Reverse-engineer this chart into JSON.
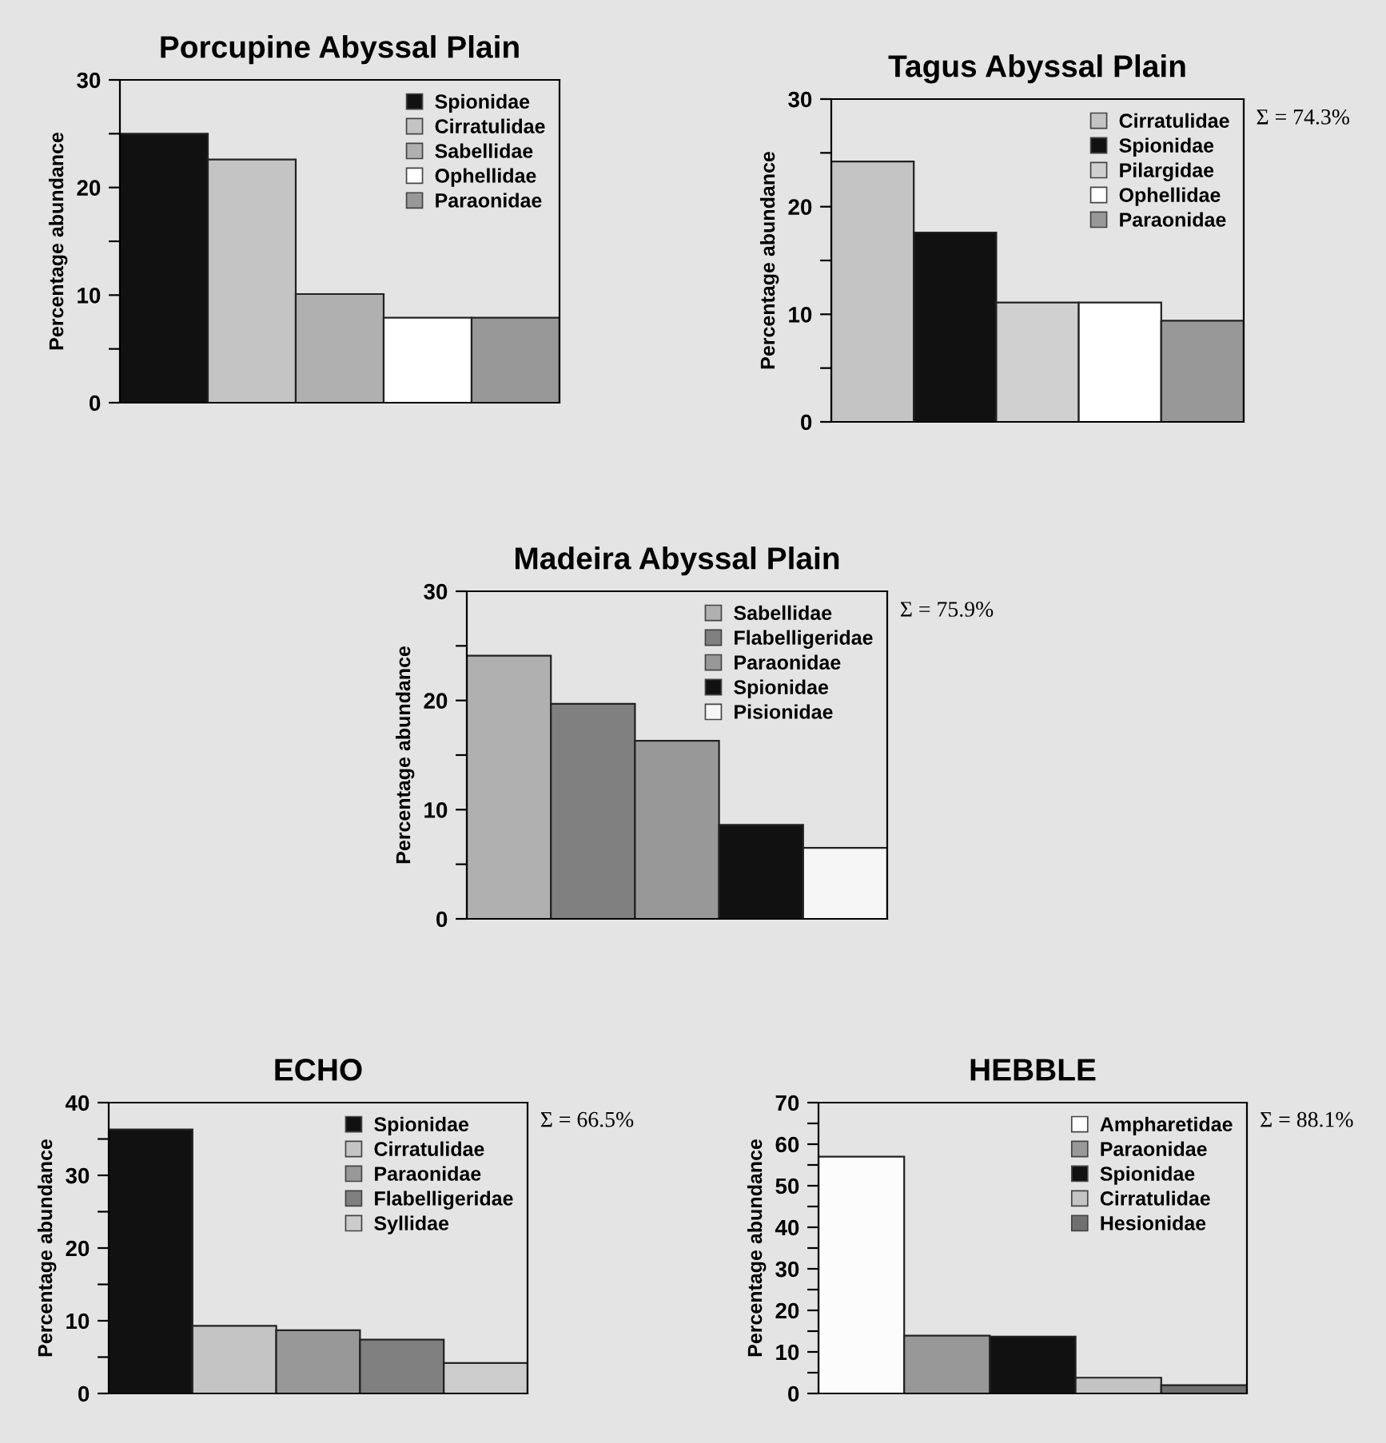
{
  "chart_data": [
    {
      "type": "bar",
      "title": "Porcupine Abyssal Plain",
      "ylabel": "Percentage abundance",
      "categories": [
        null,
        null,
        null,
        null,
        null
      ],
      "series": [
        {
          "name": "Spionidae",
          "color": "#111111",
          "values": [
            25,
            null,
            null,
            null,
            null
          ]
        },
        {
          "name": "Cirratulidae",
          "color": "#c4c4c4",
          "values": [
            null,
            22.6,
            null,
            null,
            null
          ]
        },
        {
          "name": "Sabellidae",
          "color": "#b0b0b0",
          "values": [
            null,
            null,
            10.1,
            null,
            null
          ]
        },
        {
          "name": "Ophellidae",
          "color": "#ffffff",
          "values": [
            null,
            null,
            null,
            7.9,
            null
          ]
        },
        {
          "name": "Paraonidae",
          "color": "#989898",
          "values": [
            null,
            null,
            null,
            null,
            7.9
          ]
        }
      ],
      "ylim": [
        0,
        30
      ],
      "yticks": [
        0,
        {
          "value": 5,
          "label": null
        },
        10,
        {
          "value": 15,
          "label": null
        },
        20,
        {
          "value": 25,
          "label": null
        },
        30
      ],
      "legend": "top right",
      "tick_labels": "y",
      "grid": false
    },
    {
      "type": "bar",
      "title": "Tagus Abyssal Plain",
      "ylabel": "Percentage abundance",
      "categories": [
        null,
        null,
        null,
        null,
        null
      ],
      "series": [
        {
          "name": "Cirratulidae",
          "color": "#c4c4c4",
          "values": [
            24.2,
            null,
            null,
            null,
            null
          ]
        },
        {
          "name": "Spionidae",
          "color": "#111111",
          "values": [
            null,
            17.6,
            null,
            null,
            null
          ]
        },
        {
          "name": "Pilargidae",
          "color": "#d0d0d0",
          "values": [
            null,
            null,
            11.1,
            null,
            null
          ]
        },
        {
          "name": "Ophellidae",
          "color": "#ffffff",
          "values": [
            null,
            null,
            null,
            11.1,
            null
          ]
        },
        {
          "name": "Paraonidae",
          "color": "#989898",
          "values": [
            null,
            null,
            null,
            null,
            9.4
          ]
        }
      ],
      "annotations": [
        "Σ = 74.3%"
      ],
      "ylim": [
        0,
        30
      ],
      "yticks": [
        0,
        {
          "value": 5,
          "label": null
        },
        10,
        {
          "value": 15,
          "label": null
        },
        20,
        {
          "value": 25,
          "label": null
        },
        30
      ],
      "legend": "top right",
      "tick_labels": "y",
      "grid": false
    },
    {
      "type": "bar",
      "title": "Madeira Abyssal Plain",
      "ylabel": "Percentage abundance",
      "categories": [
        null,
        null,
        null,
        null,
        null
      ],
      "series": [
        {
          "name": "Sabellidae",
          "color": "#b0b0b0",
          "values": [
            24.1,
            null,
            null,
            null,
            null
          ]
        },
        {
          "name": "Flabelligeridae",
          "color": "#808080",
          "values": [
            null,
            19.7,
            null,
            null,
            null
          ]
        },
        {
          "name": "Paraonidae",
          "color": "#989898",
          "values": [
            null,
            null,
            16.3,
            null,
            null
          ]
        },
        {
          "name": "Spionidae",
          "color": "#111111",
          "values": [
            null,
            null,
            null,
            8.6,
            null
          ]
        },
        {
          "name": "Pisionidae",
          "color": "#f6f6f6",
          "values": [
            null,
            null,
            null,
            null,
            6.5
          ]
        }
      ],
      "annotations": [
        "Σ = 75.9%"
      ],
      "ylim": [
        0,
        30
      ],
      "yticks": [
        0,
        {
          "value": 5,
          "label": null
        },
        10,
        {
          "value": 15,
          "label": null
        },
        20,
        {
          "value": 25,
          "label": null
        },
        30
      ],
      "legend": "top right",
      "tick_labels": "y",
      "grid": false
    },
    {
      "type": "bar",
      "title": "ECHO",
      "ylabel": "Percentage abundance",
      "categories": [
        null,
        null,
        null,
        null,
        null
      ],
      "series": [
        {
          "name": "Spionidae",
          "color": "#111111",
          "values": [
            36.3,
            null,
            null,
            null,
            null
          ]
        },
        {
          "name": "Cirratulidae",
          "color": "#c4c4c4",
          "values": [
            null,
            9.3,
            null,
            null,
            null
          ]
        },
        {
          "name": "Paraonidae",
          "color": "#989898",
          "values": [
            null,
            null,
            8.7,
            null,
            null
          ]
        },
        {
          "name": "Flabelligeridae",
          "color": "#808080",
          "values": [
            null,
            null,
            null,
            7.4,
            null
          ]
        },
        {
          "name": "Syllidae",
          "color": "#cccccc",
          "values": [
            null,
            null,
            null,
            null,
            4.2
          ]
        }
      ],
      "annotations": [
        "Σ = 66.5%"
      ],
      "ylim": [
        0,
        40
      ],
      "yticks": [
        0,
        {
          "value": 5,
          "label": null
        },
        10,
        {
          "value": 15,
          "label": null
        },
        20,
        {
          "value": 25,
          "label": null
        },
        30,
        {
          "value": 35,
          "label": null
        },
        40
      ],
      "legend": "top right",
      "tick_labels": "y",
      "grid": false
    },
    {
      "type": "bar",
      "title": "HEBBLE",
      "ylabel": "Percentage abundance",
      "categories": [
        null,
        null,
        null,
        null,
        null
      ],
      "series": [
        {
          "name": "Ampharetidae",
          "color": "#fcfcfc",
          "values": [
            57,
            null,
            null,
            null,
            null
          ]
        },
        {
          "name": "Paraonidae",
          "color": "#989898",
          "values": [
            null,
            13.9,
            null,
            null,
            null
          ]
        },
        {
          "name": "Spionidae",
          "color": "#111111",
          "values": [
            null,
            null,
            13.7,
            null,
            null
          ]
        },
        {
          "name": "Cirratulidae",
          "color": "#c4c4c4",
          "values": [
            null,
            null,
            null,
            3.8,
            null
          ]
        },
        {
          "name": "Hesionidae",
          "color": "#707070",
          "values": [
            null,
            null,
            null,
            null,
            2
          ]
        }
      ],
      "annotations": [
        "Σ = 88.1%"
      ],
      "ylim": [
        0,
        70
      ],
      "yticks": [
        0,
        {
          "value": 5,
          "label": null
        },
        10,
        {
          "value": 15,
          "label": null
        },
        20,
        {
          "value": 25,
          "label": null
        },
        30,
        {
          "value": 35,
          "label": null
        },
        40,
        {
          "value": 45,
          "label": null
        },
        50,
        {
          "value": 55,
          "label": null
        },
        60,
        {
          "value": 65,
          "label": null
        },
        70
      ],
      "legend": "top right",
      "tick_labels": "y",
      "grid": false
    }
  ]
}
